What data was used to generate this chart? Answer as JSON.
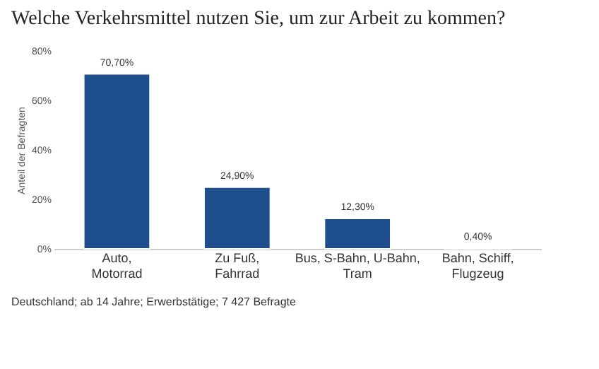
{
  "chart_data": {
    "type": "bar",
    "title": "Welche Verkehrsmittel nutzen Sie, um zur Arbeit zu kommen?",
    "ylabel": "Anteil der Befragten",
    "categories": [
      "Auto, Motorrad",
      "Zu Fuß, Fahrrad",
      "Bus, S-Bahn, U-Bahn, Tram",
      "Bahn, Schiff, Flugzeug"
    ],
    "values": [
      70.7,
      24.9,
      12.3,
      0.4
    ],
    "value_labels": [
      "70,70%",
      "24,90%",
      "12,30%",
      "0,40%"
    ],
    "color": "#1f4e8c",
    "ylim": [
      0,
      80
    ],
    "yticks": [
      {
        "value": 0,
        "label": "0%"
      },
      {
        "value": 20,
        "label": "20%"
      },
      {
        "value": 40,
        "label": "40%"
      },
      {
        "value": 60,
        "label": "60%"
      },
      {
        "value": 80,
        "label": "80%"
      }
    ],
    "grid": false,
    "annotations": [
      "Deutschland; ab 14 Jahre; Erwerbstätige; 7 427 Befragte"
    ]
  }
}
